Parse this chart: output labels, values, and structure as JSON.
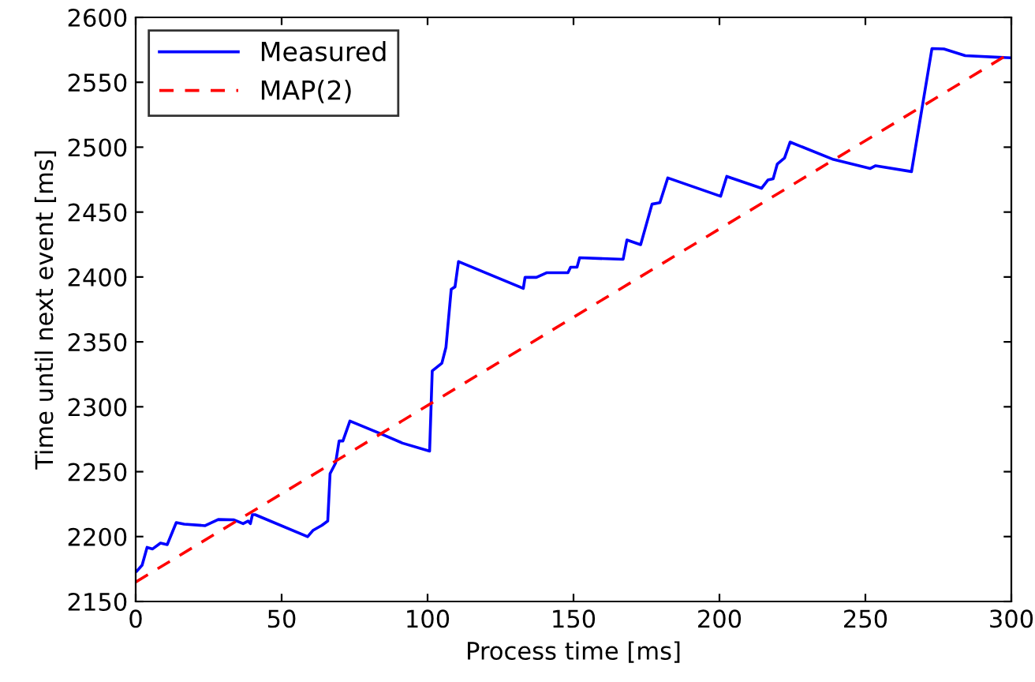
{
  "chart_data": {
    "type": "line",
    "xlabel": "Process time [ms]",
    "ylabel": "Time until next event [ms]",
    "xlim": [
      0,
      300
    ],
    "xticks": [
      0,
      50,
      100,
      150,
      200,
      250,
      300
    ],
    "ylim": [
      2150,
      2600
    ],
    "yticks": [
      2150,
      2200,
      2250,
      2300,
      2350,
      2400,
      2450,
      2500,
      2550,
      2600
    ],
    "grid": false,
    "legend": "top left",
    "series": [
      {
        "name": "Measured",
        "color": "#0000ff",
        "line_style": "solid",
        "x": [
          0.4,
          2.2,
          3.9,
          5.8,
          8.5,
          10.8,
          13.9,
          16.6,
          23.8,
          28.3,
          33.7,
          36.8,
          38.5,
          39.3,
          40,
          40.9,
          58.9,
          60.7,
          63.8,
          65.8,
          66.6,
          68.5,
          69.7,
          71,
          73.4,
          84.2,
          91.4,
          100.7,
          101.6,
          104.9,
          106.3,
          108.1,
          109.4,
          110.6,
          132.8,
          133.4,
          137.3,
          140.9,
          148.1,
          149,
          151.2,
          152.1,
          167,
          168.3,
          173,
          176.9,
          179.6,
          182.3,
          200.4,
          202.5,
          214.4,
          216.6,
          218.4,
          219.8,
          222.3,
          224.2,
          239.1,
          251.7,
          253.5,
          265.8,
          272.8,
          276.9,
          284.2,
          300
        ],
        "values": [
          2173.5,
          2178,
          2191.7,
          2190.5,
          2195,
          2193.8,
          2210.8,
          2209.6,
          2208.4,
          2213.2,
          2212.9,
          2210,
          2212,
          2210,
          2216.9,
          2216.9,
          2199.9,
          2204.7,
          2208.7,
          2212,
          2248.5,
          2256.7,
          2273.7,
          2273.7,
          2289,
          2279,
          2272,
          2265.9,
          2327.6,
          2333.6,
          2345.8,
          2390.5,
          2392.4,
          2411.9,
          2391.2,
          2399.7,
          2399.7,
          2403.3,
          2403.3,
          2407.5,
          2407.5,
          2414.8,
          2413.6,
          2428.5,
          2424.9,
          2456.1,
          2457.3,
          2476.3,
          2462.2,
          2477.5,
          2468.3,
          2474.7,
          2475.6,
          2486.9,
          2491.7,
          2503.9,
          2490.5,
          2483.6,
          2485.7,
          2481.2,
          2576,
          2575.7,
          2570.5,
          2568.8
        ]
      },
      {
        "name": "MAP(2)",
        "color": "#ff0000",
        "line_style": "dashed",
        "x": [
          0,
          300
        ],
        "values": [
          2165,
          2573
        ]
      }
    ]
  }
}
